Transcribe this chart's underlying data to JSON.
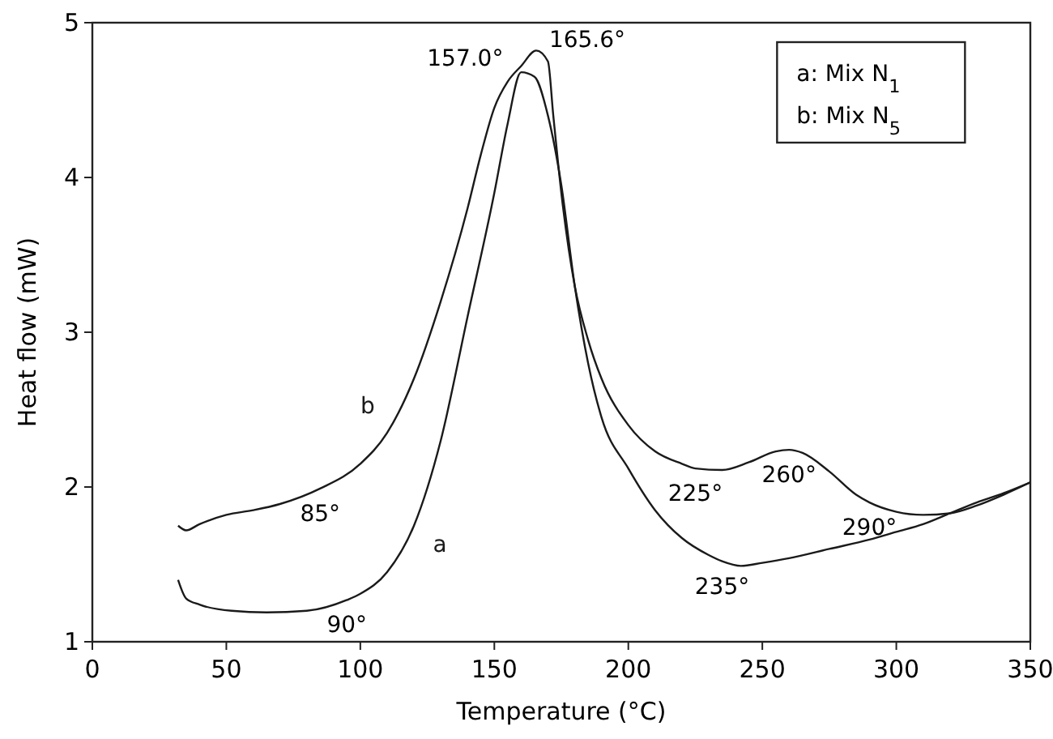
{
  "chart_data": {
    "type": "line",
    "xlabel": "Temperature (°C)",
    "ylabel": "Heat flow (mW)",
    "xlim": [
      0,
      350
    ],
    "xticks": [
      0,
      50,
      100,
      150,
      200,
      250,
      300,
      350
    ],
    "ylim": [
      1,
      5
    ],
    "yticks": [
      1,
      2,
      3,
      4,
      5
    ],
    "grid": false,
    "marker": "none",
    "line_style": "solid",
    "series": [
      {
        "name": "a",
        "color": "#1a1a1a",
        "x": [
          32,
          35,
          40,
          52,
          65,
          80,
          95,
          100,
          110,
          120,
          130,
          140,
          150,
          155,
          160,
          165,
          170,
          175,
          180,
          185,
          190,
          200,
          210,
          220,
          230,
          235,
          242,
          250,
          260,
          275,
          290,
          300,
          310,
          320,
          330,
          340,
          350
        ],
        "values": [
          1.4,
          1.28,
          1.24,
          1.2,
          1.19,
          1.2,
          1.27,
          1.31,
          1.45,
          1.75,
          2.3,
          3.1,
          3.9,
          4.35,
          4.68,
          4.65,
          4.4,
          3.95,
          3.3,
          2.8,
          2.45,
          2.12,
          1.85,
          1.67,
          1.56,
          1.52,
          1.49,
          1.51,
          1.54,
          1.6,
          1.66,
          1.71,
          1.76,
          1.83,
          1.9,
          1.96,
          2.03
        ]
      },
      {
        "name": "b",
        "color": "#1a1a1a",
        "x": [
          32,
          35,
          40,
          50,
          60,
          70,
          85,
          100,
          110,
          120,
          130,
          140,
          145,
          150,
          155,
          160,
          165.6,
          170,
          172,
          175,
          180,
          185,
          190,
          200,
          210,
          220,
          225,
          235,
          245,
          255,
          260,
          265,
          275,
          285,
          290,
          300,
          310,
          320,
          330,
          340,
          350
        ],
        "values": [
          1.75,
          1.72,
          1.76,
          1.82,
          1.85,
          1.89,
          1.99,
          2.15,
          2.35,
          2.7,
          3.2,
          3.8,
          4.15,
          4.45,
          4.62,
          4.72,
          4.82,
          4.75,
          4.4,
          3.9,
          3.3,
          2.95,
          2.7,
          2.4,
          2.23,
          2.15,
          2.12,
          2.11,
          2.16,
          2.23,
          2.24,
          2.22,
          2.1,
          1.95,
          1.9,
          1.84,
          1.82,
          1.83,
          1.88,
          1.95,
          2.03
        ]
      }
    ],
    "annotations": [
      {
        "text": "157.0°",
        "x": 157,
        "y": 4.7
      },
      {
        "text": "165.6°",
        "x": 165.6,
        "y": 4.82
      },
      {
        "text": "85°",
        "x": 85,
        "y": 1.99
      },
      {
        "text": "90°",
        "x": 95,
        "y": 1.27
      },
      {
        "text": "225°",
        "x": 225,
        "y": 2.12
      },
      {
        "text": "260°",
        "x": 260,
        "y": 2.24
      },
      {
        "text": "290°",
        "x": 290,
        "y": 1.9
      },
      {
        "text": "235°",
        "x": 235,
        "y": 1.52
      },
      "a: Mix N$_{1}$",
      "b: Mix N$_{5}$"
    ]
  }
}
